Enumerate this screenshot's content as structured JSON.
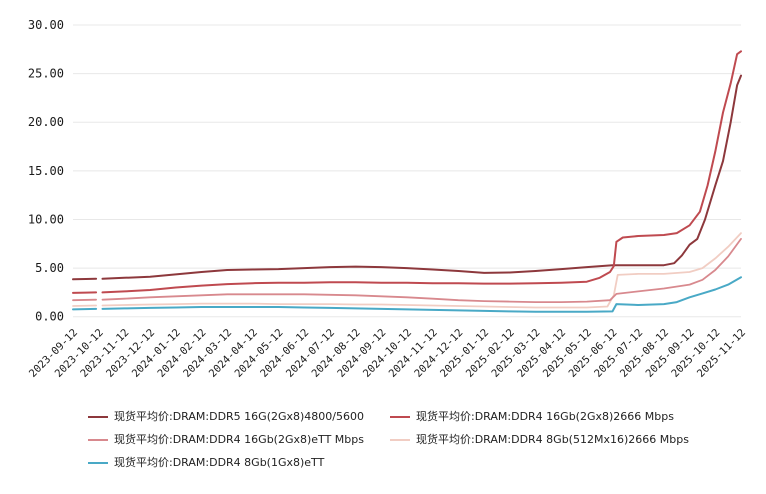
{
  "chart_data": {
    "type": "line",
    "title": "",
    "xlabel": "",
    "ylabel": "",
    "legend_position": "bottom",
    "grid": "horizontal",
    "y_axis": {
      "min": 0,
      "max": 30,
      "tick_values": [
        0,
        5,
        10,
        15,
        20,
        25,
        30
      ],
      "tick_labels": [
        "0.00",
        "5.00",
        "10.00",
        "15.00",
        "20.00",
        "25.00",
        "30.00"
      ]
    },
    "x_axis": {
      "categories": [
        "2023-09-12",
        "2023-10-12",
        "2023-11-12",
        "2023-12-12",
        "2024-01-12",
        "2024-02-12",
        "2024-03-12",
        "2024-04-12",
        "2024-05-12",
        "2024-06-12",
        "2024-07-12",
        "2024-08-12",
        "2024-09-12",
        "2024-10-12",
        "2024-11-12",
        "2024-12-12",
        "2025-01-12",
        "2025-02-12",
        "2025-03-12",
        "2025-04-12",
        "2025-05-12",
        "2025-06-12",
        "2025-07-12",
        "2025-08-12",
        "2025-09-12",
        "2025-10-12",
        "2025-11-12"
      ],
      "note": "x values in series points are fractional month indices into categories; a short data gap exists just after 2023-10-12"
    },
    "series": [
      {
        "name": "现货平均价:DRAM:DDR5 16G(2Gx8)4800/5600",
        "color": "#8d383c",
        "width": 2,
        "segments": [
          [
            [
              0,
              3.85
            ],
            [
              0.5,
              3.88
            ],
            [
              0.9,
              3.9
            ]
          ],
          [
            [
              1.15,
              3.9
            ],
            [
              2,
              4.0
            ],
            [
              3,
              4.1
            ],
            [
              4,
              4.35
            ],
            [
              5,
              4.6
            ],
            [
              6,
              4.8
            ],
            [
              7,
              4.85
            ],
            [
              8,
              4.9
            ],
            [
              9,
              5.0
            ],
            [
              10,
              5.1
            ],
            [
              11,
              5.15
            ],
            [
              12,
              5.1
            ],
            [
              13,
              5.0
            ],
            [
              14,
              4.85
            ],
            [
              15,
              4.7
            ],
            [
              16,
              4.5
            ],
            [
              17,
              4.55
            ],
            [
              18,
              4.7
            ],
            [
              19,
              4.9
            ],
            [
              20,
              5.1
            ],
            [
              21,
              5.3
            ],
            [
              22,
              5.3
            ],
            [
              23,
              5.3
            ],
            [
              23.4,
              5.5
            ],
            [
              23.7,
              6.3
            ],
            [
              24,
              7.4
            ],
            [
              24.3,
              8.0
            ],
            [
              24.6,
              10.0
            ],
            [
              25,
              13.5
            ],
            [
              25.3,
              16.0
            ],
            [
              25.6,
              20.0
            ],
            [
              25.85,
              23.8
            ],
            [
              26,
              24.8
            ]
          ]
        ]
      },
      {
        "name": "现货平均价:DRAM:DDR4 16Gb(2Gx8)2666 Mbps",
        "color": "#bf4a50",
        "width": 2,
        "segments": [
          [
            [
              0,
              2.45
            ],
            [
              0.5,
              2.48
            ],
            [
              0.9,
              2.5
            ]
          ],
          [
            [
              1.15,
              2.5
            ],
            [
              2,
              2.6
            ],
            [
              3,
              2.75
            ],
            [
              4,
              3.0
            ],
            [
              5,
              3.2
            ],
            [
              6,
              3.35
            ],
            [
              7,
              3.45
            ],
            [
              8,
              3.5
            ],
            [
              9,
              3.5
            ],
            [
              10,
              3.55
            ],
            [
              11,
              3.55
            ],
            [
              12,
              3.5
            ],
            [
              13,
              3.5
            ],
            [
              14,
              3.45
            ],
            [
              15,
              3.45
            ],
            [
              16,
              3.4
            ],
            [
              17,
              3.4
            ],
            [
              18,
              3.45
            ],
            [
              19,
              3.5
            ],
            [
              20,
              3.6
            ],
            [
              20.5,
              4.0
            ],
            [
              20.9,
              4.6
            ],
            [
              21.05,
              5.2
            ],
            [
              21.15,
              7.7
            ],
            [
              21.4,
              8.15
            ],
            [
              22,
              8.3
            ],
            [
              23,
              8.4
            ],
            [
              23.5,
              8.6
            ],
            [
              24,
              9.4
            ],
            [
              24.4,
              10.8
            ],
            [
              24.7,
              13.5
            ],
            [
              25,
              17.0
            ],
            [
              25.3,
              21.0
            ],
            [
              25.6,
              24.0
            ],
            [
              25.85,
              27.0
            ],
            [
              26,
              27.3
            ]
          ]
        ]
      },
      {
        "name": "现货平均价:DRAM:DDR4 16Gb(2Gx8)eTT Mbps",
        "color": "#d8898e",
        "width": 1.8,
        "segments": [
          [
            [
              0,
              1.7
            ],
            [
              0.9,
              1.75
            ]
          ],
          [
            [
              1.15,
              1.75
            ],
            [
              2,
              1.85
            ],
            [
              3,
              2.0
            ],
            [
              4,
              2.1
            ],
            [
              5,
              2.2
            ],
            [
              6,
              2.3
            ],
            [
              7,
              2.3
            ],
            [
              8,
              2.3
            ],
            [
              9,
              2.3
            ],
            [
              10,
              2.25
            ],
            [
              11,
              2.2
            ],
            [
              12,
              2.1
            ],
            [
              13,
              2.0
            ],
            [
              14,
              1.85
            ],
            [
              15,
              1.7
            ],
            [
              16,
              1.6
            ],
            [
              17,
              1.55
            ],
            [
              18,
              1.5
            ],
            [
              19,
              1.5
            ],
            [
              20,
              1.55
            ],
            [
              20.9,
              1.7
            ],
            [
              21.15,
              2.35
            ],
            [
              22,
              2.6
            ],
            [
              23,
              2.9
            ],
            [
              24,
              3.3
            ],
            [
              24.5,
              3.8
            ],
            [
              25,
              4.8
            ],
            [
              25.5,
              6.2
            ],
            [
              26,
              8.0
            ]
          ]
        ]
      },
      {
        "name": "现货平均价:DRAM:DDR4 8Gb(512Mx16)2666 Mbps",
        "color": "#f1cdc3",
        "width": 1.8,
        "segments": [
          [
            [
              0,
              1.1
            ],
            [
              0.9,
              1.15
            ]
          ],
          [
            [
              1.15,
              1.15
            ],
            [
              2,
              1.2
            ],
            [
              3,
              1.25
            ],
            [
              4,
              1.3
            ],
            [
              5,
              1.35
            ],
            [
              6,
              1.35
            ],
            [
              7,
              1.35
            ],
            [
              8,
              1.3
            ],
            [
              9,
              1.3
            ],
            [
              10,
              1.3
            ],
            [
              11,
              1.25
            ],
            [
              12,
              1.25
            ],
            [
              13,
              1.2
            ],
            [
              14,
              1.15
            ],
            [
              15,
              1.1
            ],
            [
              16,
              1.05
            ],
            [
              17,
              1.0
            ],
            [
              18,
              0.95
            ],
            [
              19,
              0.95
            ],
            [
              20,
              0.95
            ],
            [
              20.8,
              1.05
            ],
            [
              21.05,
              2.2
            ],
            [
              21.2,
              4.3
            ],
            [
              22,
              4.4
            ],
            [
              23,
              4.4
            ],
            [
              24,
              4.6
            ],
            [
              24.5,
              5.0
            ],
            [
              25,
              6.0
            ],
            [
              25.5,
              7.2
            ],
            [
              26,
              8.6
            ]
          ]
        ]
      },
      {
        "name": "现货平均价:DRAM:DDR4 8Gb(1Gx8)eTT",
        "color": "#49a9c6",
        "width": 2,
        "segments": [
          [
            [
              0,
              0.75
            ],
            [
              0.9,
              0.8
            ]
          ],
          [
            [
              1.15,
              0.8
            ],
            [
              2,
              0.85
            ],
            [
              3,
              0.9
            ],
            [
              4,
              0.95
            ],
            [
              5,
              1.0
            ],
            [
              6,
              1.0
            ],
            [
              7,
              1.0
            ],
            [
              8,
              1.0
            ],
            [
              9,
              0.95
            ],
            [
              10,
              0.9
            ],
            [
              11,
              0.85
            ],
            [
              12,
              0.8
            ],
            [
              13,
              0.75
            ],
            [
              14,
              0.7
            ],
            [
              15,
              0.65
            ],
            [
              16,
              0.6
            ],
            [
              17,
              0.55
            ],
            [
              18,
              0.5
            ],
            [
              19,
              0.5
            ],
            [
              20,
              0.5
            ],
            [
              21,
              0.55
            ],
            [
              21.15,
              1.3
            ],
            [
              22,
              1.2
            ],
            [
              23,
              1.3
            ],
            [
              23.5,
              1.5
            ],
            [
              24,
              2.0
            ],
            [
              24.5,
              2.4
            ],
            [
              25,
              2.8
            ],
            [
              25.5,
              3.3
            ],
            [
              26,
              4.05
            ]
          ]
        ]
      }
    ],
    "colors": {
      "grid": "#e8e8e8",
      "axis_text": "#1a1a1a",
      "background": "#ffffff"
    }
  }
}
